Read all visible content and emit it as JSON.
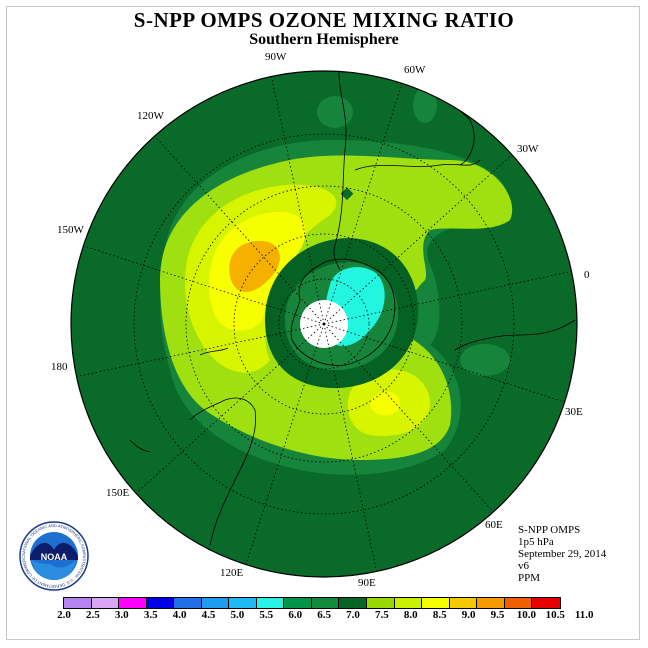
{
  "title": "S-NPP OMPS OZONE MIXING RATIO",
  "subtitle": "Southern Hemisphere",
  "longitude_labels": [
    "90W",
    "60W",
    "30W",
    "0",
    "30E",
    "60E",
    "90E",
    "120E",
    "150E",
    "180",
    "150W",
    "120W"
  ],
  "info": {
    "instrument": "S-NPP OMPS",
    "level": "1p5 hPa",
    "date": "September 29, 2014",
    "version": "v6",
    "units": "PPM"
  },
  "logo": {
    "text": "NOAA",
    "ring_text": "NATIONAL OCEANIC AND ATMOSPHERIC ADMINISTRATION · U.S. DEPARTMENT OF COMMERCE"
  },
  "colorbar": {
    "ticks": [
      "2.0",
      "2.5",
      "3.0",
      "3.5",
      "4.0",
      "4.5",
      "5.0",
      "5.5",
      "6.0",
      "6.5",
      "7.0",
      "7.5",
      "8.0",
      "8.5",
      "9.0",
      "9.5",
      "10.0",
      "10.5",
      "11.0"
    ],
    "colors": [
      "#b683f0",
      "#d9a6f6",
      "#ff00ff",
      "#0000e6",
      "#1f6fe6",
      "#1e9cf0",
      "#20b8f5",
      "#28f2e4",
      "#009448",
      "#118a3c",
      "#066425",
      "#98d800",
      "#c8f000",
      "#f5ff00",
      "#f5c800",
      "#f59a00",
      "#f06000",
      "#e60000",
      "#8b5a3c"
    ]
  },
  "map_colors": {
    "ocean_base": "#096a2a",
    "mid_green": "#16843a",
    "ring_green": "#056124",
    "light_green": "#a0e010",
    "yellow_green": "#d8f500",
    "yellow": "#f8ff00",
    "orange": "#f5b000",
    "cyan": "#22f5e0",
    "white": "#ffffff"
  }
}
